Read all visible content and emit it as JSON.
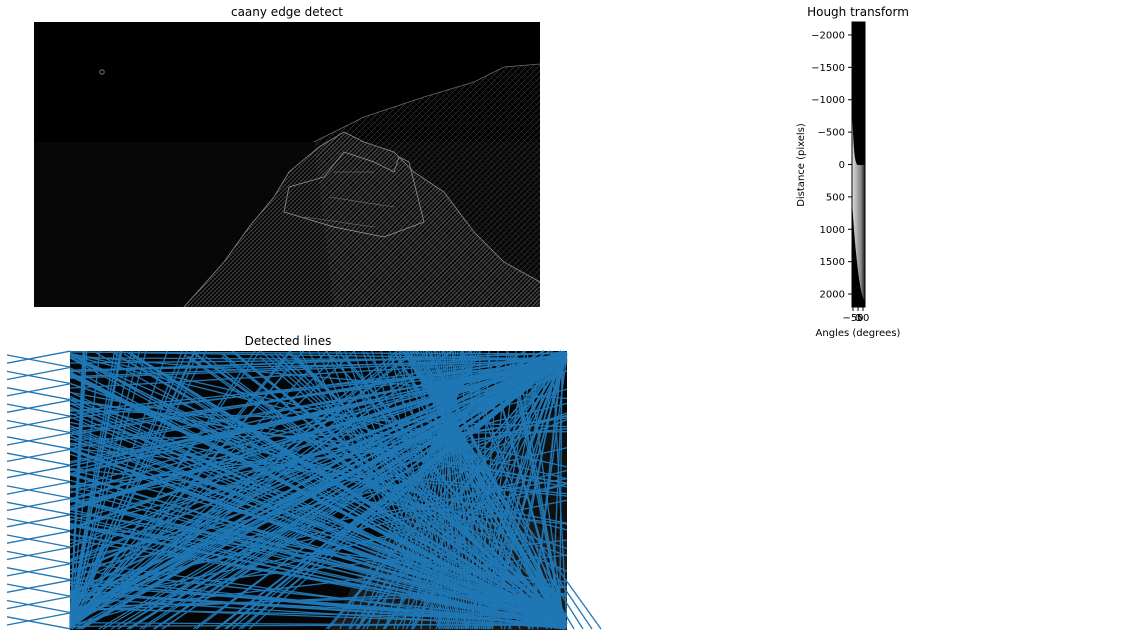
{
  "chart_data": [
    {
      "type": "image",
      "title": "caany edge detect"
    },
    {
      "type": "heatmap",
      "title": "Hough transform",
      "xlabel": "Angles (degrees)",
      "ylabel": "Distance (pixels)",
      "xticks": [
        "−50",
        "0",
        "50"
      ],
      "yticks": [
        {
          "value": -2000,
          "label": "−2000"
        },
        {
          "value": -1500,
          "label": "−1500"
        },
        {
          "value": -1000,
          "label": "−1000"
        },
        {
          "value": -500,
          "label": "−500"
        },
        {
          "value": 0,
          "label": "0"
        },
        {
          "value": 500,
          "label": "500"
        },
        {
          "value": 1000,
          "label": "1000"
        },
        {
          "value": 1500,
          "label": "1500"
        },
        {
          "value": 2000,
          "label": "2000"
        }
      ],
      "xlim": [
        -90,
        90
      ],
      "ylim": [
        -2200,
        2200
      ]
    },
    {
      "type": "line",
      "title": "Detected lines",
      "line_color": "#1f77b4",
      "line_count": "many (hundreds of detected Hough lines)"
    }
  ]
}
